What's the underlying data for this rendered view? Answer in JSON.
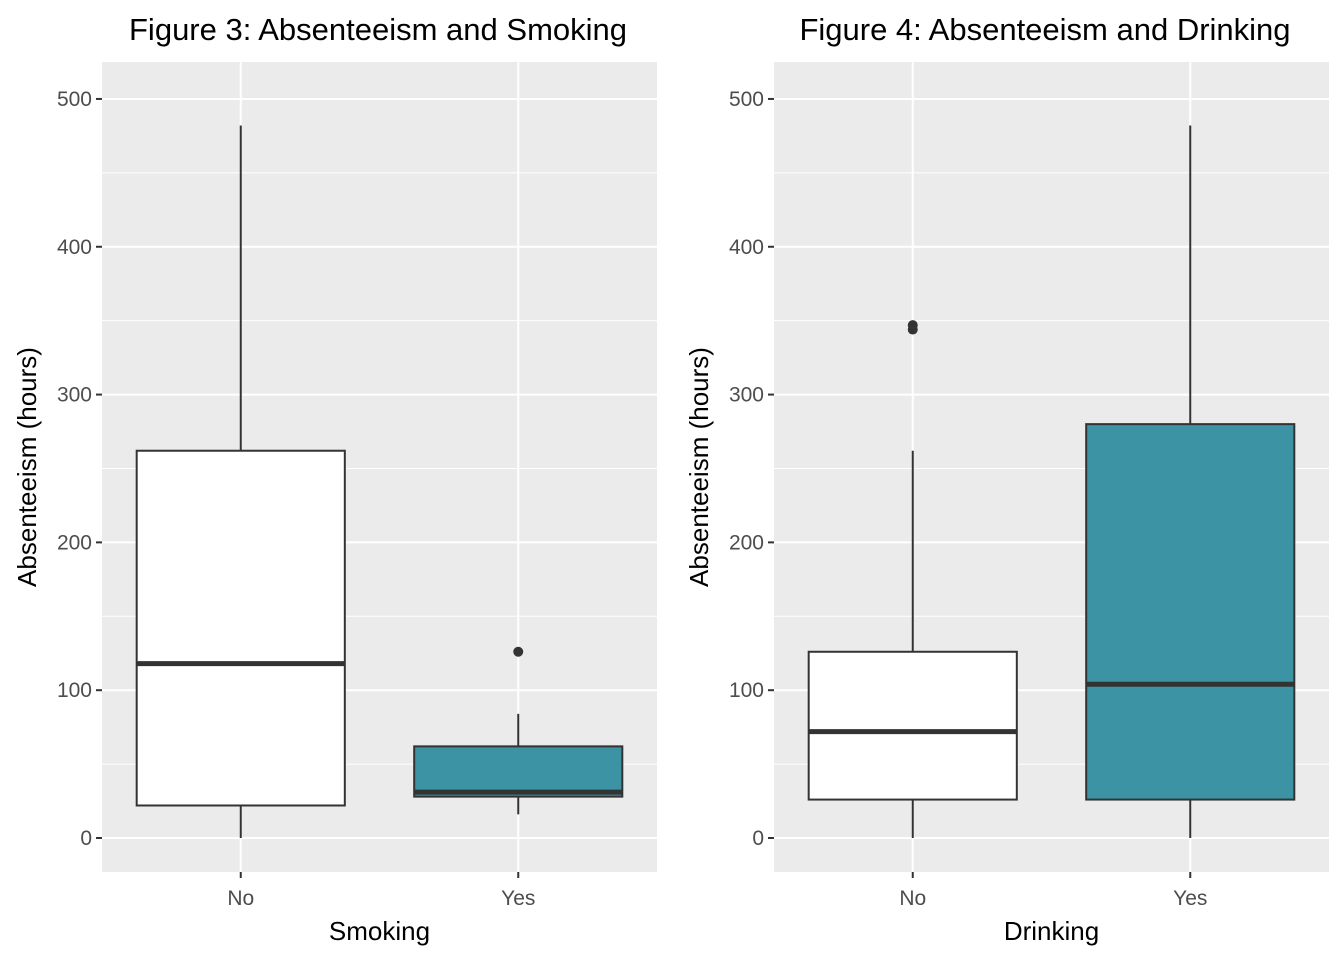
{
  "chart_data": [
    {
      "type": "box",
      "title": "Figure 3: Absenteeism and Smoking",
      "xlabel": "Smoking",
      "ylabel": "Absenteeism (hours)",
      "ylim": [
        -23,
        525
      ],
      "yticks": [
        0,
        100,
        200,
        300,
        400,
        500
      ],
      "grid": true,
      "categories": [
        "No",
        "Yes"
      ],
      "boxes": [
        {
          "category": "No",
          "min": 0,
          "q1": 22,
          "median": 118,
          "q3": 262,
          "max": 482,
          "outliers": [],
          "fill": "#ffffff"
        },
        {
          "category": "Yes",
          "min": 16,
          "q1": 28,
          "median": 31,
          "q3": 62,
          "max": 84,
          "outliers": [
            126
          ],
          "fill": "#3b93a3"
        }
      ]
    },
    {
      "type": "box",
      "title": "Figure 4: Absenteeism and Drinking",
      "xlabel": "Drinking",
      "ylabel": "Absenteeism (hours)",
      "ylim": [
        -23,
        525
      ],
      "yticks": [
        0,
        100,
        200,
        300,
        400,
        500
      ],
      "grid": true,
      "categories": [
        "No",
        "Yes"
      ],
      "boxes": [
        {
          "category": "No",
          "min": 0,
          "q1": 26,
          "median": 72,
          "q3": 126,
          "max": 262,
          "outliers": [
            344,
            347
          ],
          "fill": "#ffffff"
        },
        {
          "category": "Yes",
          "min": 0,
          "q1": 26,
          "median": 104,
          "q3": 280,
          "max": 482,
          "outliers": [],
          "fill": "#3b93a3"
        }
      ]
    }
  ],
  "colors": {
    "panel_background": "#ebebeb",
    "grid": "#ffffff",
    "box_outline": "#333333",
    "tick_text": "#4d4d4d",
    "accent_fill": "#3b93a3"
  }
}
